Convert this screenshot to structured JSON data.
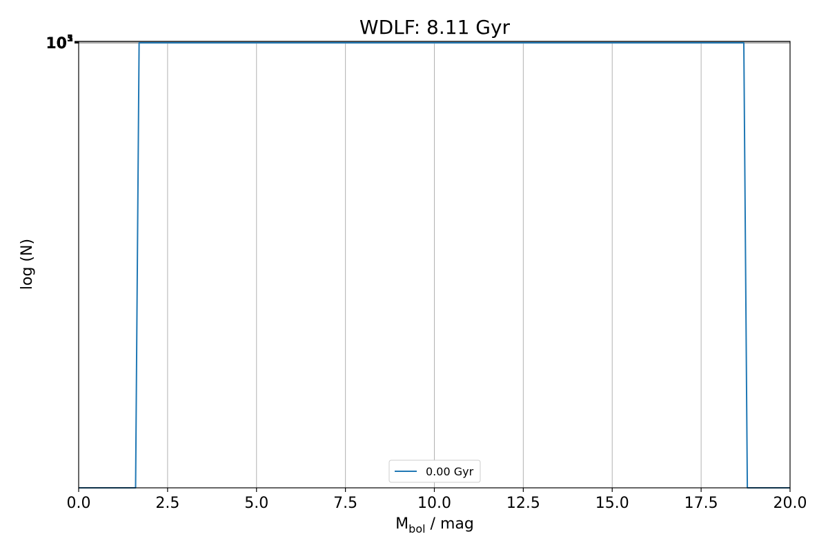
{
  "chart_data": {
    "type": "line",
    "title": "WDLF: 8.11 Gyr",
    "xlabel_main": "M",
    "xlabel_sub": "bol",
    "xlabel_rest": " / mag",
    "ylabel": "log (N)",
    "xlim": [
      0,
      20
    ],
    "x_ticks": [
      0.0,
      2.5,
      5.0,
      7.5,
      10.0,
      12.5,
      15.0,
      17.5,
      20.0
    ],
    "x_tick_labels": [
      "0.0",
      "2.5",
      "5.0",
      "7.5",
      "10.0",
      "12.5",
      "15.0",
      "17.5",
      "20.0"
    ],
    "y_scale": "log",
    "y_tick_label_overlap": [
      "10",
      "5",
      "3",
      "1"
    ],
    "grid": "vertical",
    "legend_position": "lower center",
    "colors": {
      "series": "#1f77b4",
      "grid": "#b0b0b0",
      "axis": "#000000"
    },
    "series": [
      {
        "name": "0.00 Gyr",
        "x": [
          0.0,
          1.6,
          1.7,
          5.0,
          10.0,
          15.0,
          18.7,
          18.8,
          20.0
        ],
        "y_level": [
          "floor",
          "floor",
          "top",
          "top",
          "top",
          "top",
          "top",
          "floor",
          "floor"
        ]
      }
    ]
  }
}
